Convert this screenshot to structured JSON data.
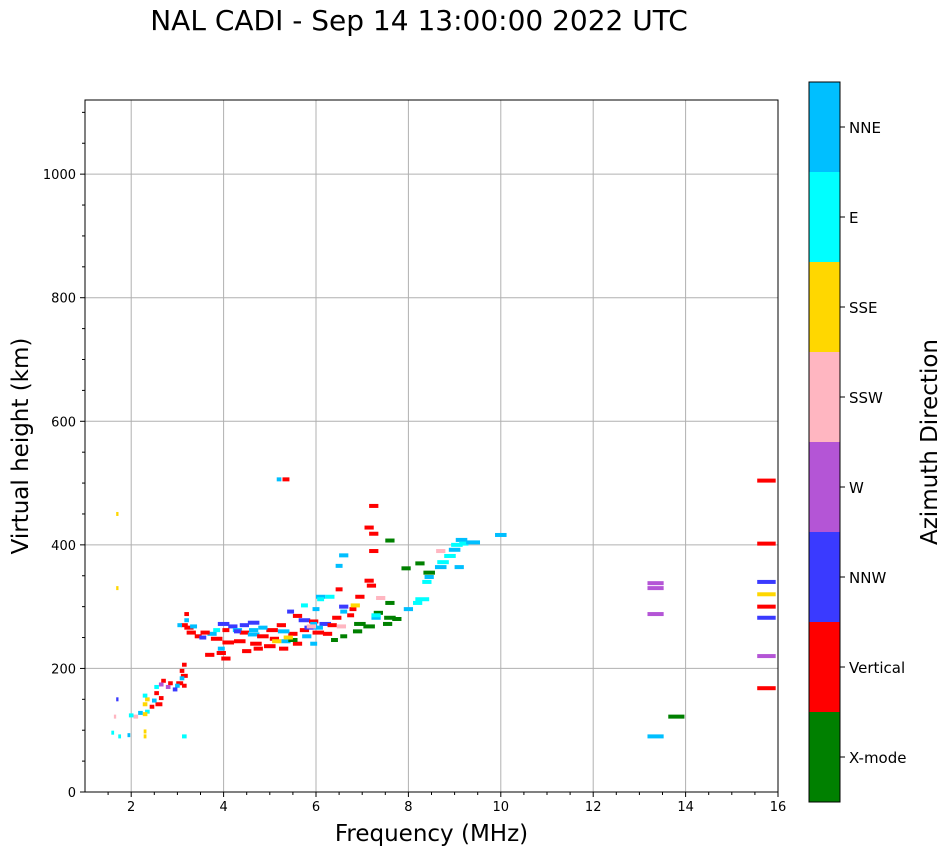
{
  "chart_data": {
    "type": "scatter",
    "title": "NAL CADI - Sep 14 13:00:00 2022 UTC",
    "xlabel": "Frequency (MHz)",
    "ylabel": "Virtual height (km)",
    "xlim": [
      1,
      16
    ],
    "ylim": [
      0,
      1120
    ],
    "xticks": [
      2,
      4,
      6,
      8,
      10,
      12,
      14,
      16
    ],
    "yticks": [
      0,
      200,
      400,
      600,
      800,
      1000
    ],
    "grid": true,
    "colorbar": {
      "label": "Azimuth Direction",
      "categories": [
        {
          "name": "X-mode",
          "color": "#008000"
        },
        {
          "name": "Vertical",
          "color": "#ff0000"
        },
        {
          "name": "NNW",
          "color": "#3a3aff"
        },
        {
          "name": "W",
          "color": "#b455d6"
        },
        {
          "name": "SSW",
          "color": "#ffb6c1"
        },
        {
          "name": "SSE",
          "color": "#ffd700"
        },
        {
          "name": "E",
          "color": "#00ffff"
        },
        {
          "name": "NNE",
          "color": "#00bfff"
        }
      ]
    },
    "points": [
      [
        "Vertical",
        5.35,
        506,
        0.15
      ],
      [
        "NNE",
        5.2,
        506,
        0.1
      ],
      [
        "Vertical",
        7.25,
        463,
        0.2
      ],
      [
        "Vertical",
        7.15,
        428,
        0.2
      ],
      [
        "Vertical",
        7.25,
        418,
        0.2
      ],
      [
        "Vertical",
        7.25,
        390,
        0.2
      ],
      [
        "X-mode",
        7.6,
        407,
        0.2
      ],
      [
        "NNE",
        6.6,
        383,
        0.2
      ],
      [
        "NNE",
        6.5,
        366,
        0.15
      ],
      [
        "X-mode",
        7.95,
        362,
        0.2
      ],
      [
        "X-mode",
        8.25,
        370,
        0.2
      ],
      [
        "X-mode",
        8.45,
        355,
        0.25
      ],
      [
        "NNE",
        8.45,
        348,
        0.2
      ],
      [
        "E",
        8.4,
        340,
        0.2
      ],
      [
        "NNE",
        8.7,
        364,
        0.25
      ],
      [
        "E",
        8.75,
        372,
        0.25
      ],
      [
        "E",
        8.9,
        382,
        0.25
      ],
      [
        "NNE",
        9.0,
        392,
        0.25
      ],
      [
        "E",
        9.05,
        400,
        0.25
      ],
      [
        "NNE",
        9.15,
        408,
        0.25
      ],
      [
        "E",
        9.2,
        402,
        0.2
      ],
      [
        "NNE",
        9.4,
        404,
        0.3
      ],
      [
        "SSW",
        8.7,
        390,
        0.2
      ],
      [
        "NNE",
        9.1,
        364,
        0.2
      ],
      [
        "NNE",
        10.0,
        416,
        0.25
      ],
      [
        "Vertical",
        7.15,
        342,
        0.2
      ],
      [
        "Vertical",
        7.2,
        334,
        0.2
      ],
      [
        "Vertical",
        6.95,
        316,
        0.2
      ],
      [
        "SSW",
        7.4,
        314,
        0.2
      ],
      [
        "E",
        8.3,
        312,
        0.3
      ],
      [
        "NNE",
        8.0,
        296,
        0.2
      ],
      [
        "E",
        8.2,
        306,
        0.2
      ],
      [
        "X-mode",
        7.6,
        306,
        0.2
      ],
      [
        "X-mode",
        7.35,
        290,
        0.2
      ],
      [
        "X-mode",
        7.6,
        282,
        0.25
      ],
      [
        "X-mode",
        7.75,
        280,
        0.2
      ],
      [
        "X-mode",
        7.55,
        272,
        0.2
      ],
      [
        "X-mode",
        7.15,
        268,
        0.25
      ],
      [
        "X-mode",
        6.95,
        272,
        0.25
      ],
      [
        "X-mode",
        6.9,
        260,
        0.2
      ],
      [
        "X-mode",
        6.6,
        252,
        0.15
      ],
      [
        "X-mode",
        6.4,
        246,
        0.15
      ],
      [
        "NNE",
        7.3,
        282,
        0.2
      ],
      [
        "E",
        7.3,
        286,
        0.2
      ],
      [
        "Vertical",
        6.8,
        296,
        0.15
      ],
      [
        "SSE",
        6.85,
        302,
        0.2
      ],
      [
        "NNW",
        6.6,
        300,
        0.2
      ],
      [
        "Vertical",
        6.5,
        328,
        0.15
      ],
      [
        "E",
        6.3,
        316,
        0.2
      ],
      [
        "NNE",
        6.1,
        316,
        0.2
      ],
      [
        "E",
        5.75,
        302,
        0.15
      ],
      [
        "NNE",
        6.0,
        296,
        0.15
      ],
      [
        "NNW",
        5.45,
        292,
        0.15
      ],
      [
        "Vertical",
        5.6,
        285,
        0.2
      ],
      [
        "NNW",
        5.75,
        278,
        0.25
      ],
      [
        "Vertical",
        5.95,
        276,
        0.2
      ],
      [
        "NNW",
        6.2,
        272,
        0.25
      ],
      [
        "Vertical",
        6.45,
        282,
        0.2
      ],
      [
        "Vertical",
        6.35,
        270,
        0.2
      ],
      [
        "NNE",
        6.05,
        266,
        0.2
      ],
      [
        "SSW",
        6.55,
        268,
        0.2
      ],
      [
        "Vertical",
        6.75,
        286,
        0.15
      ],
      [
        "NNE",
        6.6,
        292,
        0.15
      ],
      [
        "Vertical",
        6.05,
        258,
        0.25
      ],
      [
        "NNE",
        5.8,
        252,
        0.2
      ],
      [
        "Vertical",
        5.5,
        256,
        0.2
      ],
      [
        "NNE",
        5.3,
        260,
        0.25
      ],
      [
        "Vertical",
        5.05,
        262,
        0.25
      ],
      [
        "NNE",
        4.85,
        266,
        0.2
      ],
      [
        "NNW",
        4.65,
        274,
        0.25
      ],
      [
        "NNW",
        4.45,
        270,
        0.2
      ],
      [
        "NNW",
        4.2,
        268,
        0.2
      ],
      [
        "NNW",
        4.0,
        272,
        0.25
      ],
      [
        "NNE",
        4.3,
        262,
        0.2
      ],
      [
        "Vertical",
        4.45,
        258,
        0.2
      ],
      [
        "NNE",
        4.65,
        255,
        0.25
      ],
      [
        "Vertical",
        4.85,
        252,
        0.25
      ],
      [
        "Vertical",
        5.1,
        248,
        0.2
      ],
      [
        "NNE",
        5.35,
        244,
        0.2
      ],
      [
        "Vertical",
        5.6,
        240,
        0.2
      ],
      [
        "NNE",
        5.95,
        240,
        0.15
      ],
      [
        "Vertical",
        6.25,
        256,
        0.2
      ],
      [
        "Vertical",
        5.3,
        232,
        0.2
      ],
      [
        "Vertical",
        5.0,
        236,
        0.25
      ],
      [
        "Vertical",
        4.7,
        240,
        0.25
      ],
      [
        "Vertical",
        4.35,
        244,
        0.25
      ],
      [
        "Vertical",
        4.1,
        242,
        0.25
      ],
      [
        "Vertical",
        3.85,
        248,
        0.25
      ],
      [
        "NNE",
        3.75,
        256,
        0.2
      ],
      [
        "Vertical",
        3.6,
        258,
        0.2
      ],
      [
        "Vertical",
        3.45,
        252,
        0.15
      ],
      [
        "NNW",
        3.55,
        250,
        0.15
      ],
      [
        "Vertical",
        3.3,
        258,
        0.2
      ],
      [
        "Vertical",
        3.25,
        266,
        0.2
      ],
      [
        "NNE",
        3.35,
        268,
        0.15
      ],
      [
        "Vertical",
        3.15,
        270,
        0.15
      ],
      [
        "Vertical",
        3.2,
        288,
        0.1
      ],
      [
        "NNE",
        3.2,
        278,
        0.1
      ],
      [
        "NNE",
        3.05,
        270,
        0.1
      ],
      [
        "Vertical",
        3.95,
        225,
        0.2
      ],
      [
        "Vertical",
        3.7,
        222,
        0.2
      ],
      [
        "Vertical",
        4.05,
        216,
        0.2
      ],
      [
        "Vertical",
        4.5,
        228,
        0.2
      ],
      [
        "Vertical",
        4.75,
        232,
        0.2
      ],
      [
        "NNE",
        3.95,
        232,
        0.15
      ],
      [
        "X-mode",
        5.5,
        246,
        0.2
      ],
      [
        "SSE",
        5.15,
        244,
        0.2
      ],
      [
        "SSE",
        5.4,
        250,
        0.2
      ],
      [
        "Vertical",
        5.75,
        262,
        0.2
      ],
      [
        "NNW",
        5.85,
        266,
        0.2
      ],
      [
        "Vertical",
        5.25,
        270,
        0.2
      ],
      [
        "NNE",
        5.95,
        272,
        0.15
      ],
      [
        "Vertical",
        4.05,
        262,
        0.15
      ],
      [
        "NNW",
        4.3,
        260,
        0.15
      ],
      [
        "E",
        3.85,
        262,
        0.15
      ],
      [
        "NNE",
        4.65,
        262,
        0.2
      ],
      [
        "SSW",
        5.9,
        268,
        0.2
      ],
      [
        "E",
        6.1,
        312,
        0.15
      ],
      [
        "Vertical",
        3.15,
        206,
        0.1
      ],
      [
        "Vertical",
        3.1,
        196,
        0.1
      ],
      [
        "Vertical",
        3.15,
        188,
        0.15
      ],
      [
        "NNE",
        3.1,
        184,
        0.1
      ],
      [
        "Vertical",
        3.05,
        176,
        0.15
      ],
      [
        "Vertical",
        3.15,
        172,
        0.1
      ],
      [
        "NNE",
        3.0,
        172,
        0.1
      ],
      [
        "NNW",
        2.95,
        166,
        0.1
      ],
      [
        "Vertical",
        2.85,
        176,
        0.1
      ],
      [
        "W",
        2.8,
        170,
        0.1
      ],
      [
        "Vertical",
        2.7,
        180,
        0.1
      ],
      [
        "W",
        2.65,
        174,
        0.1
      ],
      [
        "Vertical",
        2.55,
        160,
        0.1
      ],
      [
        "E",
        2.55,
        170,
        0.1
      ],
      [
        "Vertical",
        2.65,
        152,
        0.1
      ],
      [
        "Vertical",
        2.6,
        142,
        0.15
      ],
      [
        "NNE",
        2.5,
        148,
        0.1
      ],
      [
        "Vertical",
        2.45,
        138,
        0.1
      ],
      [
        "SSE",
        2.35,
        150,
        0.1
      ],
      [
        "E",
        2.3,
        156,
        0.1
      ],
      [
        "SSE",
        2.3,
        142,
        0.1
      ],
      [
        "E",
        2.35,
        130,
        0.1
      ],
      [
        "SSE",
        2.3,
        126,
        0.1
      ],
      [
        "NNE",
        2.2,
        128,
        0.1
      ],
      [
        "SSW",
        2.1,
        122,
        0.1
      ],
      [
        "E",
        2.0,
        124,
        0.1
      ],
      [
        "SSE",
        2.3,
        98,
        0.06
      ],
      [
        "SSE",
        2.3,
        90,
        0.06
      ],
      [
        "NNE",
        1.95,
        92,
        0.06
      ],
      [
        "E",
        1.75,
        90,
        0.06
      ],
      [
        "E",
        1.6,
        96,
        0.06
      ],
      [
        "SSW",
        1.65,
        122,
        0.05
      ],
      [
        "NNW",
        1.7,
        150,
        0.05
      ],
      [
        "SSE",
        1.7,
        450,
        0.05
      ],
      [
        "SSE",
        1.7,
        330,
        0.05
      ],
      [
        "E",
        3.15,
        90,
        0.1
      ],
      [
        "NNE",
        13.35,
        90,
        0.35
      ],
      [
        "X-mode",
        13.8,
        122,
        0.35
      ],
      [
        "W",
        13.35,
        338,
        0.35
      ],
      [
        "W",
        13.35,
        330,
        0.35
      ],
      [
        "W",
        13.35,
        288,
        0.35
      ],
      [
        "Vertical",
        15.75,
        504,
        0.4
      ],
      [
        "Vertical",
        15.75,
        402,
        0.4
      ],
      [
        "NNW",
        15.75,
        340,
        0.4
      ],
      [
        "SSE",
        15.75,
        320,
        0.4
      ],
      [
        "Vertical",
        15.75,
        300,
        0.4
      ],
      [
        "NNW",
        15.75,
        282,
        0.4
      ],
      [
        "W",
        15.75,
        220,
        0.4
      ],
      [
        "Vertical",
        15.75,
        168,
        0.4
      ]
    ]
  }
}
